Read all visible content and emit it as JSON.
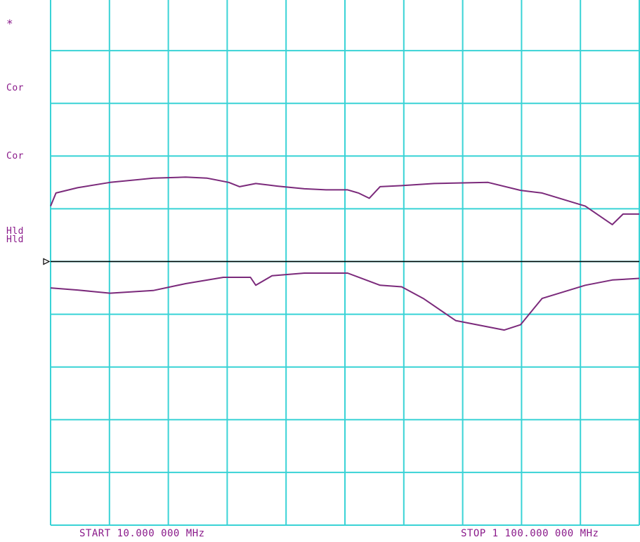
{
  "annotations": {
    "marker": "*",
    "cor1": "Cor",
    "cor2": "Cor",
    "hld1": "Hld",
    "hld2": "Hld"
  },
  "colors": {
    "grid": "#39d3d6",
    "trace": "#7b2a7b",
    "reference": "#000000",
    "text": "#8a1a8a"
  },
  "chart_data": {
    "type": "line",
    "title": "",
    "xlabel": "",
    "ylabel": "",
    "x_start_label": "START  10.000 000 MHz",
    "x_stop_label": "STOP 1 100.000 000 MHz",
    "xlim": [
      10,
      1100
    ],
    "x_unit": "MHz",
    "ylim": [
      -5,
      5
    ],
    "y_divisions": 10,
    "x_divisions": 10,
    "grid": true,
    "reference_level": 0,
    "series": [
      {
        "x": [
          10,
          20,
          60,
          120,
          200,
          260,
          300,
          340,
          360,
          375,
          390,
          430,
          480,
          520,
          560,
          580,
          600,
          620,
          660,
          720,
          820,
          880,
          920,
          1000,
          1050,
          1070,
          1100
        ],
        "values": [
          1.05,
          1.3,
          1.4,
          1.5,
          1.58,
          1.6,
          1.58,
          1.5,
          1.42,
          1.45,
          1.48,
          1.43,
          1.38,
          1.36,
          1.36,
          1.3,
          1.2,
          1.42,
          1.44,
          1.48,
          1.5,
          1.35,
          1.3,
          1.05,
          0.7,
          0.9,
          0.9
        ]
      },
      {
        "x": [
          10,
          60,
          120,
          200,
          260,
          330,
          380,
          390,
          420,
          480,
          560,
          620,
          660,
          700,
          760,
          850,
          880,
          920,
          1000,
          1050,
          1100
        ],
        "values": [
          -0.5,
          -0.54,
          -0.6,
          -0.55,
          -0.42,
          -0.3,
          -0.3,
          -0.45,
          -0.27,
          -0.22,
          -0.22,
          -0.45,
          -0.48,
          -0.7,
          -1.12,
          -1.3,
          -1.2,
          -0.7,
          -0.45,
          -0.35,
          -0.32
        ]
      }
    ]
  }
}
